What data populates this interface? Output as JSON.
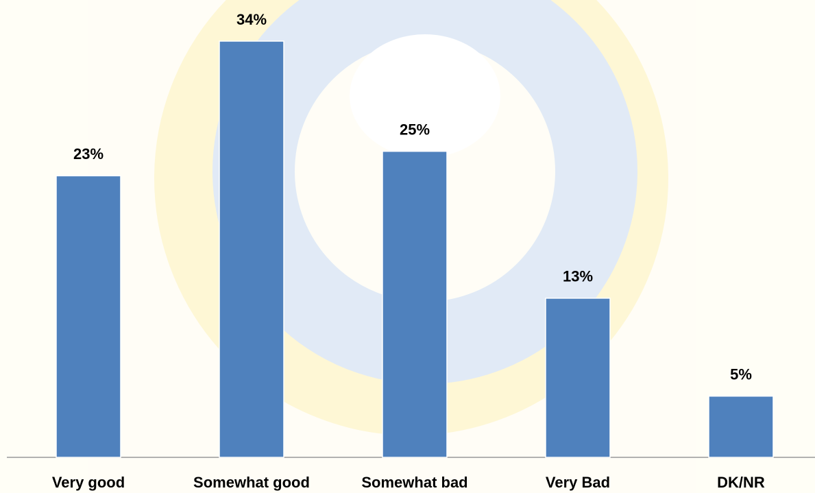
{
  "chart_data": {
    "type": "bar",
    "categories": [
      "Very good",
      "Somewhat good",
      "Somewhat bad",
      "Very Bad",
      "DK/NR"
    ],
    "values": [
      23,
      34,
      25,
      13,
      5
    ],
    "value_labels": [
      "23%",
      "34%",
      "25%",
      "13%",
      "5%"
    ],
    "color": "#4f81bd"
  }
}
